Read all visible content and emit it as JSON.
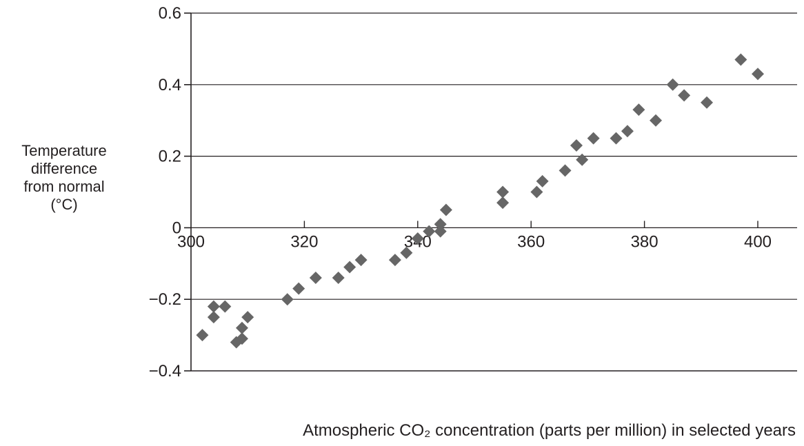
{
  "chart_data": {
    "type": "scatter",
    "title": "",
    "ylabel_lines": [
      "Temperature",
      "difference",
      "from normal",
      "(°C)"
    ],
    "xlabel": "Atmospheric CO₂ concentration (parts per million) in selected years",
    "xlim": [
      300,
      408
    ],
    "ylim": [
      -0.4,
      0.6
    ],
    "xticks": [
      300,
      320,
      340,
      360,
      380,
      400
    ],
    "xtick_labels": [
      "300",
      "320",
      "340",
      "360",
      "380",
      "400"
    ],
    "yticks": [
      0.6,
      0.4,
      0.2,
      0,
      -0.2,
      -0.4
    ],
    "ytick_labels": [
      "0.6",
      "0.4",
      "0.2",
      "0",
      "−0.2",
      "−0.4"
    ],
    "grid": "horizontal",
    "marker": "diamond",
    "marker_color": "#666666",
    "series": [
      {
        "points": [
          [
            302,
            -0.3
          ],
          [
            304,
            -0.22
          ],
          [
            304,
            -0.25
          ],
          [
            306,
            -0.22
          ],
          [
            308,
            -0.32
          ],
          [
            309,
            -0.28
          ],
          [
            309,
            -0.31
          ],
          [
            310,
            -0.25
          ],
          [
            317,
            -0.2
          ],
          [
            319,
            -0.17
          ],
          [
            322,
            -0.14
          ],
          [
            326,
            -0.14
          ],
          [
            328,
            -0.11
          ],
          [
            330,
            -0.09
          ],
          [
            336,
            -0.09
          ],
          [
            338,
            -0.07
          ],
          [
            340,
            -0.03
          ],
          [
            342,
            -0.01
          ],
          [
            344,
            0.01
          ],
          [
            344,
            -0.01
          ],
          [
            345,
            0.05
          ],
          [
            355,
            0.1
          ],
          [
            355,
            0.07
          ],
          [
            361,
            0.1
          ],
          [
            362,
            0.13
          ],
          [
            366,
            0.16
          ],
          [
            368,
            0.23
          ],
          [
            369,
            0.19
          ],
          [
            371,
            0.25
          ],
          [
            375,
            0.25
          ],
          [
            377,
            0.27
          ],
          [
            379,
            0.33
          ],
          [
            382,
            0.3
          ],
          [
            385,
            0.4
          ],
          [
            387,
            0.37
          ],
          [
            391,
            0.35
          ],
          [
            397,
            0.47
          ],
          [
            400,
            0.43
          ]
        ]
      }
    ]
  }
}
